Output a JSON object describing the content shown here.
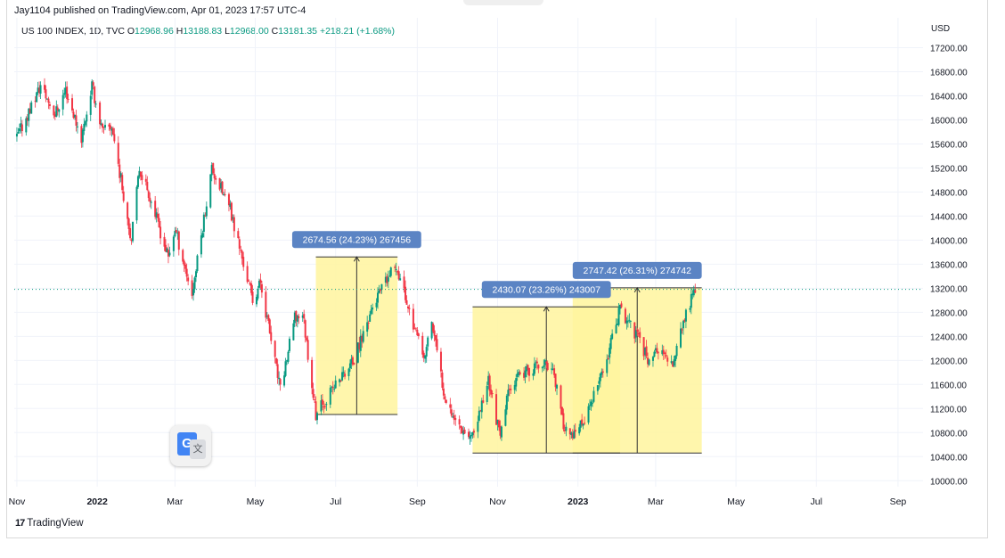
{
  "header": {
    "published": "Jay1104 published on TradingView.com, Apr 01, 2023 17:57 UTC-4",
    "symbol": "US 100 INDEX, 1D, TVC",
    "open_label": "O",
    "open": "12968.96",
    "high_label": "H",
    "high": "13188.83",
    "low_label": "L",
    "low": "12968.00",
    "close_label": "C",
    "close": "13181.35",
    "change": "+218.21 (+1.68%)",
    "currency": "USD"
  },
  "branding": {
    "logo_mark": "17",
    "logo_text": "TradingView",
    "translate_g": "G",
    "translate_x": "文"
  },
  "colors": {
    "up": "#089981",
    "down": "#f23645",
    "box_fill": "#fff59d",
    "label_bg": "#5b84c4",
    "price_line": "#089981",
    "grid": "#f0f3fa"
  },
  "chart_data": {
    "type": "candlestick",
    "y_axis_ticks": [
      17200,
      16800,
      16400,
      16000,
      15600,
      15200,
      14800,
      14400,
      14000,
      13600,
      13200,
      12800,
      12400,
      12000,
      11600,
      11200,
      10800,
      10400,
      10000
    ],
    "y_tick_labels": [
      "17200.00",
      "16800.00",
      "16400.00",
      "16000.00",
      "15600.00",
      "15200.00",
      "14800.00",
      "14400.00",
      "14000.00",
      "13600.00",
      "13200.00",
      "12800.00",
      "12400.00",
      "12000.00",
      "11600.00",
      "11200.00",
      "10800.00",
      "10400.00",
      "10000.00"
    ],
    "ylim": [
      9900,
      17400
    ],
    "x_axis_ticks": [
      "2021-11-01",
      "2022-01-01",
      "2022-03-01",
      "2022-05-01",
      "2022-07-01",
      "2022-09-01",
      "2022-11-01",
      "2023-01-01",
      "2023-03-01",
      "2023-05-01",
      "2023-07-01",
      "2023-09-01"
    ],
    "x_tick_labels": [
      "Nov",
      "2022",
      "Mar",
      "May",
      "Jul",
      "Sep",
      "Nov",
      "2023",
      "Mar",
      "May",
      "Jul",
      "Sep"
    ],
    "xlim": [
      "2021-10-30",
      "2023-09-20"
    ],
    "current_price": 13181.35,
    "price_path": [
      [
        "2021-11-01",
        15700
      ],
      [
        "2021-11-19",
        16570
      ],
      [
        "2021-11-30",
        16100
      ],
      [
        "2021-12-08",
        16500
      ],
      [
        "2021-12-20",
        15700
      ],
      [
        "2021-12-28",
        16570
      ],
      [
        "2022-01-05",
        15800
      ],
      [
        "2022-01-12",
        15900
      ],
      [
        "2022-01-27",
        14000
      ],
      [
        "2022-02-02",
        15200
      ],
      [
        "2022-02-09",
        14800
      ],
      [
        "2022-02-24",
        13700
      ],
      [
        "2022-03-01",
        14200
      ],
      [
        "2022-03-14",
        13100
      ],
      [
        "2022-03-29",
        15200
      ],
      [
        "2022-04-12",
        14500
      ],
      [
        "2022-04-29",
        13000
      ],
      [
        "2022-05-05",
        13300
      ],
      [
        "2022-05-20",
        11500
      ],
      [
        "2022-05-31",
        12700
      ],
      [
        "2022-06-06",
        12800
      ],
      [
        "2022-06-16",
        11100
      ],
      [
        "2022-07-01",
        11600
      ],
      [
        "2022-07-15",
        12000
      ],
      [
        "2022-07-29",
        12900
      ],
      [
        "2022-08-16",
        13600
      ],
      [
        "2022-08-25",
        12900
      ],
      [
        "2022-09-06",
        12000
      ],
      [
        "2022-09-12",
        12650
      ],
      [
        "2022-09-21",
        11500
      ],
      [
        "2022-09-30",
        11000
      ],
      [
        "2022-10-13",
        10700
      ],
      [
        "2022-10-25",
        11700
      ],
      [
        "2022-11-03",
        10700
      ],
      [
        "2022-11-10",
        11600
      ],
      [
        "2022-11-30",
        11900
      ],
      [
        "2022-12-13",
        11900
      ],
      [
        "2022-12-20",
        11000
      ],
      [
        "2022-12-28",
        10700
      ],
      [
        "2023-01-06",
        11000
      ],
      [
        "2023-01-20",
        11800
      ],
      [
        "2023-02-02",
        12850
      ],
      [
        "2023-02-15",
        12400
      ],
      [
        "2023-02-24",
        12000
      ],
      [
        "2023-03-02",
        12200
      ],
      [
        "2023-03-13",
        11900
      ],
      [
        "2023-03-20",
        12500
      ],
      [
        "2023-03-24",
        12750
      ],
      [
        "2023-03-31",
        13181
      ]
    ],
    "annotations": [
      {
        "label": "2674.56 (24.23%) 267456",
        "start": "2022-06-16",
        "end": "2022-08-17",
        "low": 11100,
        "high": 13720
      },
      {
        "label": "2430.07 (23.26%) 243007",
        "start": "2022-10-13",
        "end": "2023-02-02",
        "low": 10460,
        "high": 12890
      },
      {
        "label": "2747.42 (26.31%) 274742",
        "start": "2022-12-28",
        "end": "2023-04-05",
        "low": 10460,
        "high": 13207
      }
    ]
  }
}
